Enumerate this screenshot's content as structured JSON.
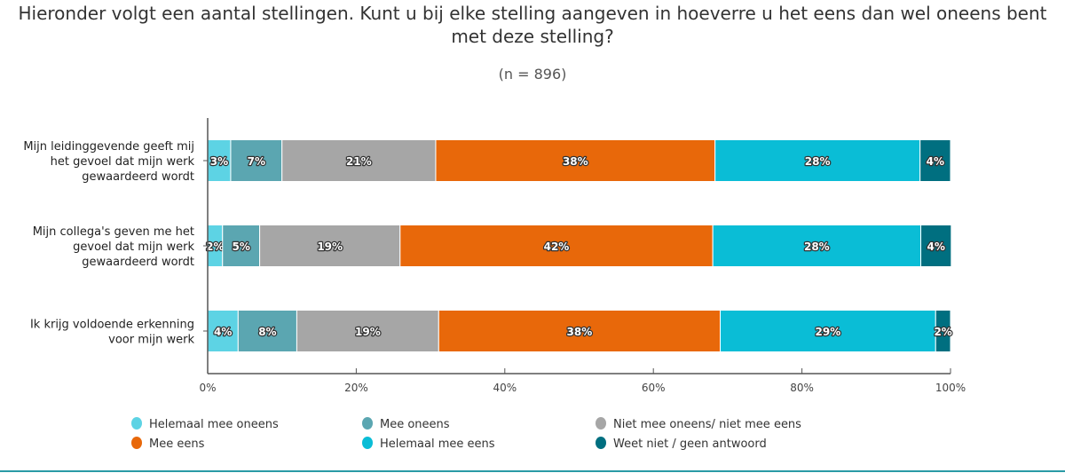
{
  "chart_data": {
    "type": "bar",
    "orientation": "horizontal",
    "stacked": true,
    "title": "Hieronder volgt een aantal stellingen. Kunt u bij elke stelling aangeven in hoeverre u het eens dan wel oneens bent met deze stelling?",
    "subtitle": "(n = 896)",
    "categories": [
      [
        "Mijn leidinggevende geeft mij",
        "het gevoel dat mijn werk",
        "gewaardeerd wordt"
      ],
      [
        "Mijn collega's geven me het",
        "gevoel dat mijn werk",
        "gewaardeerd wordt"
      ],
      [
        "Ik krijg voldoende erkenning",
        "voor mijn werk"
      ]
    ],
    "xlim": [
      0,
      100
    ],
    "x_ticks": [
      "0%",
      "20%",
      "40%",
      "60%",
      "80%",
      "100%"
    ],
    "grid": false,
    "legend_position": "bottom-left",
    "series": [
      {
        "name": "Helemaal mee oneens",
        "color": "#5dd3e4",
        "values": [
          3.1,
          2.0,
          4.1
        ],
        "labels": [
          "3%",
          "2%",
          "4%"
        ]
      },
      {
        "name": "Mee oneens",
        "color": "#5ba6b1",
        "values": [
          6.9,
          5.0,
          7.9
        ],
        "labels": [
          "7%",
          "5%",
          "8%"
        ]
      },
      {
        "name": "Niet mee oneens/ niet mee eens",
        "color": "#a6a6a6",
        "values": [
          20.7,
          18.9,
          19.1
        ],
        "labels": [
          "21%",
          "19%",
          "19%"
        ]
      },
      {
        "name": "Mee eens",
        "color": "#e8680a",
        "values": [
          37.6,
          42.1,
          37.9
        ],
        "labels": [
          "38%",
          "42%",
          "38%"
        ]
      },
      {
        "name": "Helemaal mee eens",
        "color": "#0abdd6",
        "values": [
          27.6,
          28.0,
          29.0
        ],
        "labels": [
          "28%",
          "28%",
          "29%"
        ]
      },
      {
        "name": "Weet niet / geen antwoord",
        "color": "#006f80",
        "values": [
          4.1,
          4.1,
          2.0
        ],
        "labels": [
          "4%",
          "4%",
          "2%"
        ]
      }
    ]
  }
}
